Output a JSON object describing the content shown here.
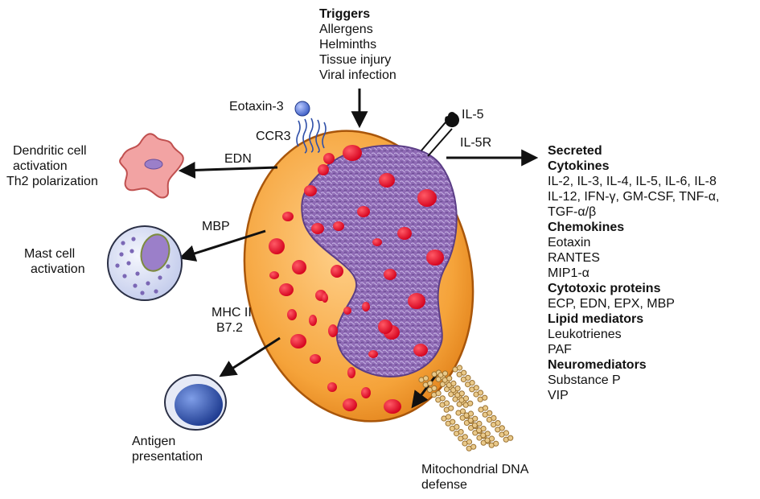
{
  "triggers": {
    "heading": "Triggers",
    "items": [
      "Allergens",
      "Helminths",
      "Tissue injury",
      "Viral infection"
    ]
  },
  "receptors": {
    "eotaxin3": "Eotaxin-3",
    "ccr3": "CCR3",
    "il5": "IL-5",
    "il5r": "IL-5R"
  },
  "arrows": {
    "edn": "EDN",
    "mbp": "MBP",
    "mhc_line1": "MHC II",
    "mhc_line2": "B7.2"
  },
  "outcomes": {
    "dendritic": [
      "Dendritic cell",
      "activation",
      "Th2 polarization"
    ],
    "mast": [
      "Mast cell",
      "activation"
    ],
    "antigen": [
      "Antigen",
      "presentation"
    ],
    "mito": [
      "Mitochondrial DNA",
      "defense"
    ]
  },
  "secreted": {
    "heading": "Secreted",
    "groups": [
      {
        "title": "Cytokines",
        "lines": [
          "IL-2, IL-3, IL-4, IL-5, IL-6, IL-8",
          "IL-12, IFN-γ, GM-CSF, TNF-α,",
          "TGF-α/β"
        ]
      },
      {
        "title": "Chemokines",
        "lines": [
          "Eotaxin",
          "RANTES",
          "MIP1-α"
        ]
      },
      {
        "title": "Cytotoxic proteins",
        "lines": [
          "ECP, EDN, EPX, MBP"
        ]
      },
      {
        "title": "Lipid mediators",
        "lines": [
          "Leukotrienes",
          "PAF"
        ]
      },
      {
        "title": "Neuromediators",
        "lines": [
          "Substance P",
          "VIP"
        ]
      }
    ]
  },
  "colors": {
    "cytoplasm": "#f5a33a",
    "nucleus": "#8f6bb5",
    "granule": "#e8102b",
    "arrow": "#111111",
    "dendritic_cell": "#f2a3a3",
    "mast_cell": "#dfe3f5",
    "antigen_cell": "#2f4fa8",
    "mito_dna": "#e9c98a"
  }
}
